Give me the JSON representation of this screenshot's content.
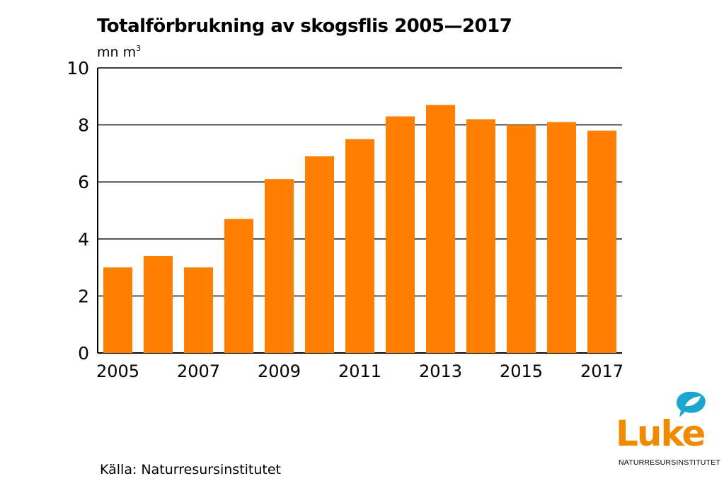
{
  "chart_data": {
    "type": "bar",
    "title": "Totalförbrukning av skogsflis 2005—2017",
    "unit_prefix": "mn m",
    "unit_superscript": "3",
    "categories": [
      "2005",
      "2006",
      "2007",
      "2008",
      "2009",
      "2010",
      "2011",
      "2012",
      "2013",
      "2014",
      "2015",
      "2016",
      "2017"
    ],
    "x_tick_labels": [
      "2005",
      "2007",
      "2009",
      "2011",
      "2013",
      "2015",
      "2017"
    ],
    "values": [
      3.0,
      3.4,
      3.0,
      4.7,
      6.1,
      6.9,
      7.5,
      8.3,
      8.7,
      8.2,
      8.0,
      8.1,
      7.8
    ],
    "ylim": [
      0,
      10
    ],
    "yticks": [
      0,
      2,
      4,
      6,
      8,
      10
    ],
    "grid": true,
    "bar_color": "#ff8000",
    "legend": "none"
  },
  "source": "Källa: Naturresursinstitutet",
  "logo": {
    "word": "Luke",
    "subtitle": "NATURRESURSINSTITUTET",
    "color": "#f08a00",
    "bubble_color": "#1ba6cf",
    "icon": "leaf-speech-bubble-icon"
  }
}
